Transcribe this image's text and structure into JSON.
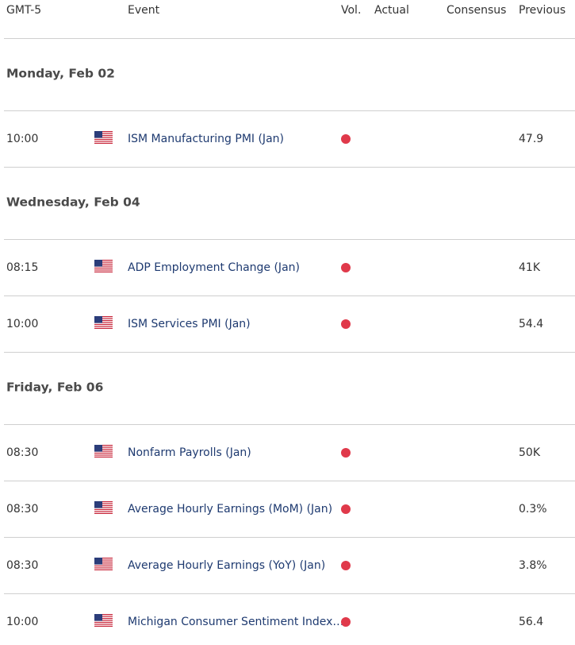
{
  "header": {
    "columns": [
      "GMT-5",
      "Event",
      "Vol.",
      "Actual",
      "Consensus",
      "Previous"
    ]
  },
  "days": [
    {
      "date": "Monday, Feb 02",
      "events": [
        {
          "time": "10:00",
          "event": "ISM Manufacturing PMI (Jan)",
          "previous": "47.9"
        }
      ]
    },
    {
      "date": "Wednesday, Feb 04",
      "events": [
        {
          "time": "08:15",
          "event": "ADP Employment Change (Jan)",
          "previous": "41K"
        },
        {
          "time": "10:00",
          "event": "ISM Services PMI (Jan)",
          "previous": "54.4"
        }
      ]
    },
    {
      "date": "Friday, Feb 06",
      "events": [
        {
          "time": "08:30",
          "event": "Nonfarm Payrolls (Jan)",
          "previous": "50K"
        },
        {
          "time": "08:30",
          "event": "Average Hourly Earnings (MoM) (Jan)",
          "previous": "0.3%"
        },
        {
          "time": "08:30",
          "event": "Average Hourly Earnings (YoY) (Jan)",
          "previous": "3.8%"
        },
        {
          "time": "10:00",
          "event": "Michigan Consumer Sentiment Index…",
          "previous": "56.4"
        }
      ]
    }
  ]
}
